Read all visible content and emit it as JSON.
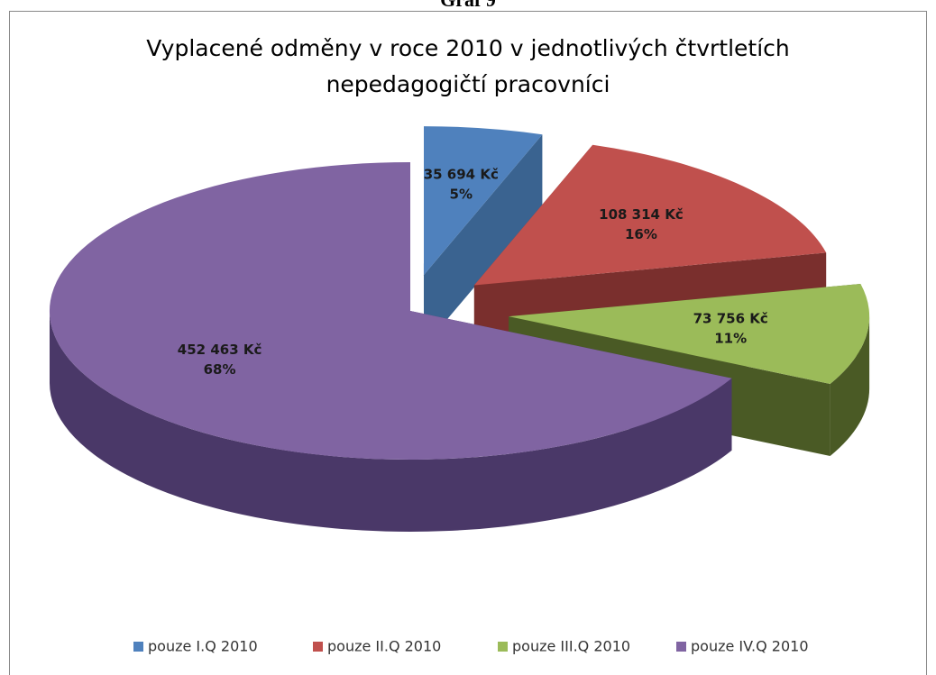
{
  "caption": "Graf 9",
  "chart_data": {
    "type": "pie",
    "title": [
      "Vyplacené odměny v roce 2010 v jednotlivých čtvrtletích",
      "nepedagogičtí pracovníci"
    ],
    "categories": [
      "pouze I.Q 2010",
      "pouze II.Q 2010",
      "pouze III.Q 2010",
      "pouze IV.Q 2010"
    ],
    "values": [
      35694,
      108314,
      73756,
      452463
    ],
    "value_labels": [
      "35 694 Kč",
      "108 314 Kč",
      "73 756 Kč",
      "452 463 Kč"
    ],
    "percent_labels": [
      "5%",
      "16%",
      "11%",
      "68%"
    ],
    "colors": [
      "#4f81bd",
      "#c0504d",
      "#9bbb59",
      "#8064a2"
    ],
    "side_colors": [
      "#3a6390",
      "#7a2f2d",
      "#4a5a25",
      "#4a3868"
    ],
    "legend": "bottom"
  }
}
